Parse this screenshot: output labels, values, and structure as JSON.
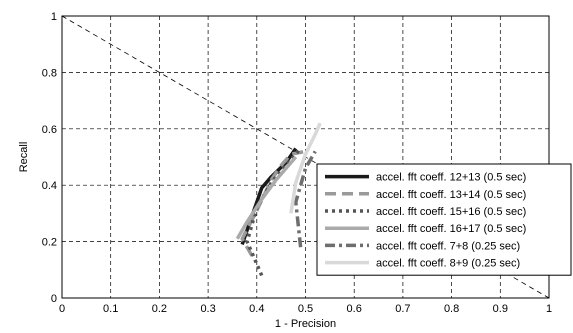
{
  "chart_data": {
    "type": "line",
    "title": "",
    "xlabel": "1 - Precision",
    "ylabel": "Recall",
    "xlim": [
      0,
      1
    ],
    "ylim": [
      0,
      1
    ],
    "x_ticks": [
      "0",
      "0.1",
      "0.2",
      "0.3",
      "0.4",
      "0.5",
      "0.6",
      "0.7",
      "0.8",
      "0.9",
      "1"
    ],
    "y_ticks": [
      "0",
      "0.2",
      "0.4",
      "0.6",
      "0.8",
      "1"
    ],
    "grid": true,
    "legend_position": "lower-right",
    "reference_line": {
      "style": "dashed",
      "color": "#000000",
      "x": [
        0,
        1
      ],
      "y": [
        1,
        0
      ]
    },
    "series": [
      {
        "name": "accel. fft coeff. 12+13 (0.5 sec)",
        "color": "#1a1a1a",
        "dash": "solid",
        "width": 3.5,
        "x": [
          0.37,
          0.39,
          0.41,
          0.43,
          0.46,
          0.48
        ],
        "y": [
          0.19,
          0.29,
          0.39,
          0.43,
          0.48,
          0.53
        ]
      },
      {
        "name": "accel. fft coeff. 13+14 (0.5 sec)",
        "color": "#9a9a9a",
        "dash": "dashed",
        "width": 3.5,
        "x": [
          0.39,
          0.37,
          0.4,
          0.43,
          0.45,
          0.47,
          0.5
        ],
        "y": [
          0.15,
          0.21,
          0.31,
          0.42,
          0.47,
          0.51,
          0.52
        ]
      },
      {
        "name": "accel. fft coeff. 15+16 (0.5 sec)",
        "color": "#555555",
        "dash": "dotted",
        "width": 3.5,
        "x": [
          0.41,
          0.38,
          0.4,
          0.43,
          0.46,
          0.49
        ],
        "y": [
          0.08,
          0.2,
          0.32,
          0.41,
          0.47,
          0.53
        ]
      },
      {
        "name": "accel. fft coeff. 16+17 (0.5 sec)",
        "color": "#aaaaaa",
        "dash": "solid",
        "width": 3.5,
        "x": [
          0.36,
          0.38,
          0.41,
          0.44,
          0.46,
          0.48
        ],
        "y": [
          0.21,
          0.27,
          0.35,
          0.42,
          0.46,
          0.5
        ]
      },
      {
        "name": "accel. fft coeff. 7+8 (0.25 sec)",
        "color": "#6e6e6e",
        "dash": "dashdot",
        "width": 3.5,
        "x": [
          0.49,
          0.48,
          0.5,
          0.52
        ],
        "y": [
          0.18,
          0.34,
          0.46,
          0.52
        ]
      },
      {
        "name": "accel. fft coeff. 8+9 (0.25 sec)",
        "color": "#d9d9d9",
        "dash": "solid",
        "width": 3.5,
        "x": [
          0.47,
          0.48,
          0.5,
          0.52,
          0.53
        ],
        "y": [
          0.3,
          0.41,
          0.51,
          0.58,
          0.62
        ]
      }
    ]
  }
}
